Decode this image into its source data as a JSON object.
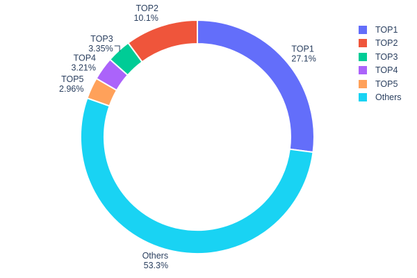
{
  "chart_data": {
    "type": "pie",
    "title": "",
    "labels": [
      "TOP1",
      "TOP2",
      "TOP3",
      "TOP4",
      "TOP5",
      "Others"
    ],
    "values": [
      27.1,
      10.1,
      3.35,
      3.21,
      2.96,
      53.3
    ],
    "percent_labels": [
      "27.1%",
      "10.1%",
      "3.35%",
      "3.21%",
      "2.96%",
      "53.3%"
    ],
    "colors": [
      "#636EFA",
      "#EF553B",
      "#00CC96",
      "#AB63FA",
      "#FFA15A",
      "#19D3F3"
    ],
    "hole_ratio": 0.8,
    "direction": "clockwise",
    "rotation_start": "top",
    "draw_order": [
      "TOP1",
      "Others",
      "TOP5",
      "TOP4",
      "TOP3",
      "TOP2"
    ],
    "labels_position": "outside",
    "leader_line_slices": [
      "TOP3"
    ],
    "legend": {
      "position": "right",
      "entries": [
        "TOP1",
        "TOP2",
        "TOP3",
        "TOP4",
        "TOP5",
        "Others"
      ]
    },
    "text_color": "#2a3f5f",
    "background_color": "#ffffff"
  }
}
